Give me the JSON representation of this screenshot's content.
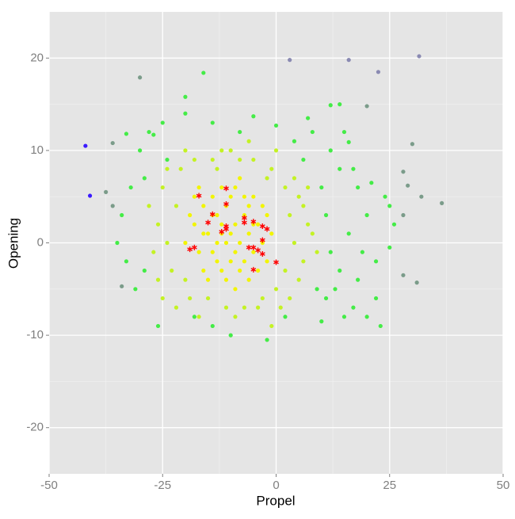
{
  "chart_data": {
    "type": "scatter",
    "x_label": "Propel",
    "y_label": "Opening",
    "xlim": [
      -50,
      50
    ],
    "ylim": [
      -25,
      25
    ],
    "xticks": [
      -50,
      -25,
      0,
      25,
      50
    ],
    "yticks": [
      -20,
      -10,
      0,
      10,
      20
    ],
    "grid": true,
    "series": [
      {
        "color": "#f2f500",
        "marker": "circle",
        "x": [
          -10,
          -12,
          -8,
          -14,
          -6,
          -9,
          -11,
          -13,
          -7,
          -15,
          -5,
          -16,
          -10,
          -4,
          -12,
          -18,
          -8,
          -3,
          -17,
          -14,
          -6,
          -9,
          -11,
          -2,
          -19,
          -13,
          -7,
          -16,
          -5,
          -20,
          -1,
          -12,
          -9,
          -10,
          -15,
          -4,
          -8,
          -18,
          -3,
          -6,
          -14,
          -11,
          -7,
          -16,
          -2,
          -13,
          -9,
          -17,
          -5,
          -12
        ],
        "y": [
          1,
          2,
          0,
          3,
          1,
          -1,
          4,
          -2,
          3,
          1,
          -1,
          4,
          5,
          2,
          -3,
          2,
          -3,
          0,
          -1,
          5,
          4,
          6,
          -4,
          3,
          3,
          0,
          -2,
          -3,
          5,
          0,
          1,
          6,
          2,
          -2,
          -4,
          -3,
          7,
          5,
          4,
          -4,
          -1,
          0,
          5,
          1,
          -2,
          3,
          -5,
          6,
          2,
          1
        ]
      },
      {
        "color": "#c4f224",
        "marker": "circle",
        "x": [
          -22,
          -24,
          -20,
          -25,
          -21,
          -18,
          -14,
          -10,
          -5,
          -1,
          2,
          3,
          4,
          2,
          0,
          -3,
          -7,
          -11,
          -15,
          -19,
          -23,
          -26,
          -27,
          -24,
          5,
          6,
          7,
          1,
          -17,
          -13,
          -8,
          -2,
          4,
          6,
          -26,
          -22,
          -9,
          -4,
          3,
          8,
          -28,
          -20,
          -6,
          0,
          5,
          -25,
          9,
          7,
          -1,
          -12
        ],
        "y": [
          4,
          0,
          -4,
          6,
          8,
          9,
          9,
          10,
          9,
          8,
          6,
          3,
          0,
          -3,
          -5,
          -6,
          -7,
          -7,
          -6,
          -6,
          -3,
          2,
          -1,
          8,
          5,
          -2,
          2,
          -7,
          -8,
          8,
          9,
          7,
          7,
          4,
          -4,
          -7,
          -8,
          -7,
          -6,
          1,
          4,
          10,
          11,
          10,
          -4,
          -6,
          -1,
          6,
          -9,
          10
        ]
      },
      {
        "color": "#44ec47",
        "marker": "circle",
        "x": [
          -30,
          -28,
          -25,
          -20,
          -32,
          -34,
          -33,
          -31,
          -26,
          -18,
          -14,
          -10,
          -2,
          2,
          10,
          15,
          20,
          22,
          18,
          14,
          12,
          16,
          20,
          24,
          18,
          14,
          12,
          8,
          4,
          0,
          -5,
          -8,
          -14,
          -20,
          -24,
          -29,
          -35,
          25,
          22,
          10,
          11,
          13,
          17,
          6,
          -27,
          23,
          -29,
          9,
          26,
          19,
          15,
          14,
          7,
          12,
          16,
          21,
          25,
          17,
          11,
          -33,
          -16
        ],
        "y": [
          10,
          12,
          13,
          15.8,
          6,
          3,
          -2,
          -5,
          -9,
          -8,
          -9,
          -10,
          -10.5,
          -8,
          -8.5,
          -8,
          -8,
          -6,
          -4,
          -3,
          -1,
          1,
          3,
          5,
          6,
          8,
          10,
          12,
          11,
          12.7,
          13.7,
          12,
          13,
          14,
          9,
          7,
          0,
          -0.5,
          -2,
          6,
          3,
          -5,
          -7,
          9,
          11.7,
          -9,
          -3,
          -5,
          2,
          -1,
          12,
          15,
          13.5,
          14.9,
          10.9,
          6.5,
          4,
          8,
          -6,
          11.8,
          18.4
        ]
      },
      {
        "color": "#7b9c8a",
        "marker": "circle",
        "x": [
          -30,
          -36,
          -37.5,
          -36,
          -34,
          30,
          28,
          29,
          32,
          36.5,
          28,
          31,
          28,
          20
        ],
        "y": [
          17.9,
          10.8,
          5.5,
          4,
          -4.7,
          10.7,
          7.7,
          6.2,
          5,
          4.3,
          3,
          -4.3,
          -3.5,
          14.8
        ]
      },
      {
        "color": "#8a8ab2",
        "marker": "circle",
        "x": [
          3,
          16,
          22.5,
          31.5
        ],
        "y": [
          19.8,
          19.8,
          18.5,
          20.2
        ]
      },
      {
        "color": "#3a1aff",
        "marker": "circle",
        "x": [
          -42,
          -41
        ],
        "y": [
          10.5,
          5.1
        ]
      },
      {
        "color": "#ff0000",
        "marker": "star",
        "x": [
          -17,
          -11,
          -11,
          -14,
          -15,
          -7,
          -7,
          -5,
          -12,
          -11,
          -11,
          -3,
          -2,
          -3,
          -19,
          -18,
          -6,
          -5,
          -4,
          -3,
          0,
          -5
        ],
        "y": [
          5.1,
          5.9,
          4.2,
          3.1,
          2.2,
          2.7,
          2.2,
          2.3,
          1.2,
          1.8,
          1.5,
          1.8,
          1.5,
          0.3,
          -0.7,
          -0.5,
          -0.5,
          -0.5,
          -0.8,
          -1.2,
          -2.1,
          -2.9
        ]
      }
    ]
  }
}
